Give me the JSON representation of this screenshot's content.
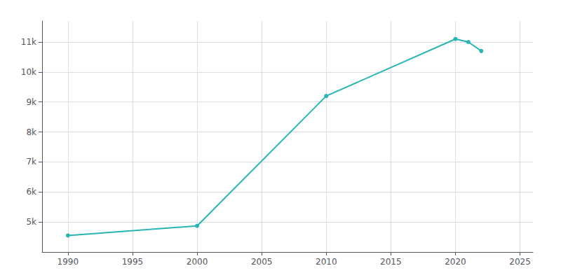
{
  "chart_data": {
    "type": "line",
    "x": [
      1990,
      2000,
      2010,
      2020,
      2021,
      2022
    ],
    "values": [
      4550,
      4870,
      9200,
      11100,
      11000,
      10700
    ],
    "color": "#2ab5b5",
    "marker": "circle",
    "xlim": [
      1988,
      2026
    ],
    "ylim": [
      4000,
      11700
    ],
    "xticks": [
      1990,
      1995,
      2000,
      2005,
      2010,
      2015,
      2020,
      2025
    ],
    "yticks": [
      {
        "value": 5000,
        "label": "5k"
      },
      {
        "value": 6000,
        "label": "6k"
      },
      {
        "value": 7000,
        "label": "7k"
      },
      {
        "value": 8000,
        "label": "8k"
      },
      {
        "value": 9000,
        "label": "9k"
      },
      {
        "value": 10000,
        "label": "10k"
      },
      {
        "value": 11000,
        "label": "11k"
      }
    ],
    "grid": true
  }
}
